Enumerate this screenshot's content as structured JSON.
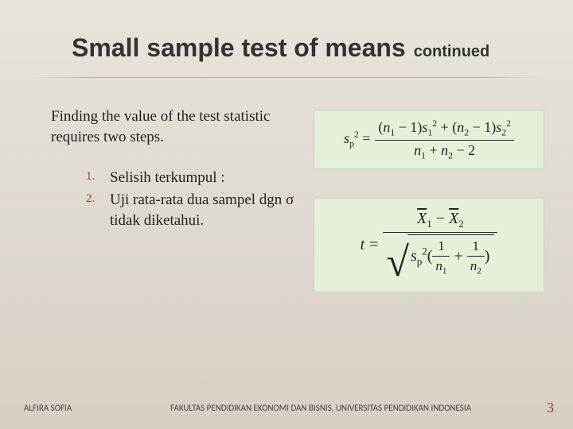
{
  "title": {
    "main": "Small sample test of means",
    "continued": "continued"
  },
  "intro": "Finding the value of the test statistic requires two steps.",
  "steps": [
    {
      "num": "1.",
      "text": "Selisih terkumpul :"
    },
    {
      "num": "2.",
      "text": "Uji rata-rata dua sampel dgn σ tidak diketahui."
    }
  ],
  "formula1": {
    "lhs_base": "s",
    "lhs_sub": "p",
    "lhs_sup": "2",
    "num_left_open": "(",
    "num_n1": "n",
    "num_n1_sub": "1",
    "num_minus1_a": " − 1)",
    "num_s1": "s",
    "num_s1_sub": "1",
    "num_s1_sup": "2",
    "num_plus": " + (",
    "num_n2": "n",
    "num_n2_sub": "2",
    "num_minus1_b": " − 1)",
    "num_s2": "s",
    "num_s2_sub": "2",
    "num_s2_sup": "2",
    "den_n1": "n",
    "den_n1_sub": "1",
    "den_plus": " + ",
    "den_n2": "n",
    "den_n2_sub": "2",
    "den_minus2": " − 2"
  },
  "formula2": {
    "lhs": "t",
    "eq": "=",
    "num_x1": "X",
    "num_x1_sub": "1",
    "num_minus": " − ",
    "num_x2": "X",
    "num_x2_sub": "2",
    "den_sp": "s",
    "den_sp_sub": "p",
    "den_sp_sup": "2",
    "den_open": "(",
    "den_frac1_num": "1",
    "den_frac1_den_base": "n",
    "den_frac1_den_sub": "1",
    "den_plus": " + ",
    "den_frac2_num": "1",
    "den_frac2_den_base": "n",
    "den_frac2_den_sub": "2",
    "den_close": ")"
  },
  "footer": {
    "left": "ALFIRA SOFIA",
    "center": "FAKULTAS PENDIDIKAN EKONOMI DAN BISNIS, UNIVERSITAS PENDIDIKAN INDONESIA",
    "page": "3"
  },
  "colors": {
    "accent": "#a5382e",
    "formula_bg": "#e6f0d8"
  }
}
